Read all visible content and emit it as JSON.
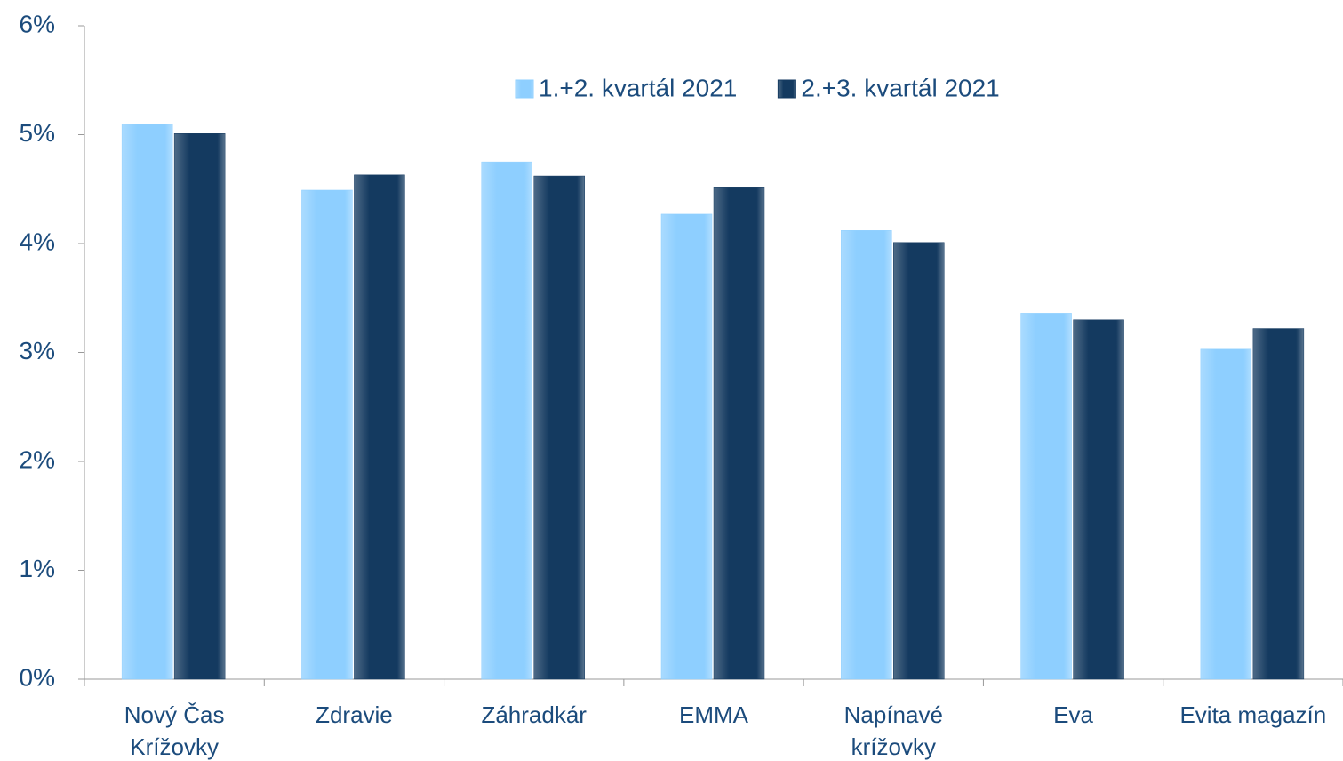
{
  "chart_data": {
    "type": "bar",
    "categories": [
      "Nový Čas Krížovky",
      "Zdravie",
      "Záhradkár",
      "EMMA",
      "Napínavé krížovky",
      "Eva",
      "Evita magazín"
    ],
    "series": [
      {
        "name": "1.+2. kvartál 2021",
        "color": "#8ecfff",
        "values": [
          5.1,
          4.49,
          4.75,
          4.27,
          4.12,
          3.36,
          3.03
        ]
      },
      {
        "name": "2.+3. kvartál 2021",
        "color": "#143a60",
        "values": [
          5.01,
          4.63,
          4.62,
          4.52,
          4.01,
          3.3,
          3.22
        ]
      }
    ],
    "ylim": [
      0,
      6
    ],
    "yticks": [
      {
        "value": 0,
        "label": "0%"
      },
      {
        "value": 1,
        "label": "1%"
      },
      {
        "value": 2,
        "label": "2%"
      },
      {
        "value": 3,
        "label": "3%"
      },
      {
        "value": 4,
        "label": "4%"
      },
      {
        "value": 5,
        "label": "5%"
      },
      {
        "value": 6,
        "label": "6%"
      }
    ],
    "grid": false,
    "legend": "top"
  }
}
